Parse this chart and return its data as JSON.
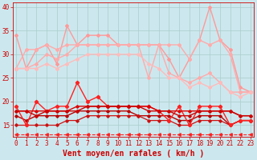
{
  "bg_color": "#cce8ee",
  "grid_color": "#aacccc",
  "xlabel": "Vent moyen/en rafales ( km/h )",
  "xlabel_color": "#cc0000",
  "xlabel_fontsize": 7,
  "tick_color": "#cc0000",
  "tick_fontsize": 5.5,
  "yticks": [
    15,
    20,
    25,
    30,
    35,
    40
  ],
  "xticks": [
    0,
    1,
    2,
    3,
    4,
    5,
    6,
    7,
    8,
    9,
    10,
    11,
    12,
    13,
    14,
    15,
    16,
    17,
    18,
    19,
    20,
    21,
    22,
    23
  ],
  "ylim": [
    12.5,
    41
  ],
  "xlim": [
    -0.3,
    23.3
  ],
  "series": [
    {
      "name": "light_upper1",
      "color": "#ff9999",
      "lw": 1.0,
      "ls": "-",
      "marker": "D",
      "ms": 2.0,
      "zorder": 2,
      "data_x": [
        0,
        1,
        2,
        3,
        4,
        5,
        6,
        7,
        8,
        9,
        10,
        11,
        12,
        13,
        14,
        15,
        16,
        17,
        18,
        19,
        20,
        21,
        22,
        23
      ],
      "data_y": [
        34,
        27,
        31,
        32,
        28,
        36,
        32,
        34,
        34,
        34,
        32,
        32,
        32,
        32,
        32,
        29,
        25,
        29,
        33,
        40,
        33,
        31,
        23,
        22
      ]
    },
    {
      "name": "light_upper2",
      "color": "#ffaaaa",
      "lw": 1.0,
      "ls": "-",
      "marker": "D",
      "ms": 2.0,
      "zorder": 2,
      "data_x": [
        0,
        1,
        2,
        3,
        4,
        5,
        6,
        7,
        8,
        9,
        10,
        11,
        12,
        13,
        14,
        15,
        16,
        17,
        18,
        19,
        20,
        21,
        22,
        23
      ],
      "data_y": [
        27,
        31,
        31,
        32,
        31,
        32,
        32,
        32,
        32,
        32,
        32,
        32,
        32,
        32,
        32,
        32,
        32,
        29,
        33,
        32,
        33,
        30,
        22,
        22
      ]
    },
    {
      "name": "light_lower1",
      "color": "#ffaaaa",
      "lw": 1.0,
      "ls": "-",
      "marker": "D",
      "ms": 2.0,
      "zorder": 2,
      "data_x": [
        0,
        1,
        2,
        3,
        4,
        5,
        6,
        7,
        8,
        9,
        10,
        11,
        12,
        13,
        14,
        15,
        16,
        17,
        18,
        19,
        20,
        21,
        22,
        23
      ],
      "data_y": [
        27,
        27,
        28,
        30,
        29,
        30,
        32,
        32,
        32,
        32,
        32,
        32,
        32,
        25,
        32,
        26,
        25,
        24,
        25,
        26,
        24,
        22,
        22,
        22
      ]
    },
    {
      "name": "light_lower2",
      "color": "#ffbbbb",
      "lw": 1.0,
      "ls": "-",
      "marker": "D",
      "ms": 2.0,
      "zorder": 2,
      "data_x": [
        0,
        1,
        2,
        3,
        4,
        5,
        6,
        7,
        8,
        9,
        10,
        11,
        12,
        13,
        14,
        15,
        16,
        17,
        18,
        19,
        20,
        21,
        22,
        23
      ],
      "data_y": [
        27,
        27,
        27,
        28,
        27,
        28,
        29,
        30,
        30,
        30,
        30,
        30,
        30,
        28,
        27,
        25,
        25,
        23,
        24,
        23,
        24,
        22,
        21,
        22
      ]
    },
    {
      "name": "dark_spiky",
      "color": "#ff2020",
      "lw": 1.0,
      "ls": "-",
      "marker": "D",
      "ms": 2.2,
      "zorder": 4,
      "data_x": [
        0,
        1,
        2,
        3,
        4,
        5,
        6,
        7,
        8,
        9,
        10,
        11,
        12,
        13,
        14,
        15,
        16,
        17,
        18,
        19,
        20,
        21,
        22,
        23
      ],
      "data_y": [
        19,
        15,
        20,
        18,
        19,
        19,
        24,
        20,
        21,
        19,
        19,
        19,
        19,
        19,
        18,
        16,
        19,
        15,
        19,
        19,
        19,
        15,
        16,
        16
      ]
    },
    {
      "name": "dark_flat1",
      "color": "#dd0000",
      "lw": 1.0,
      "ls": "-",
      "marker": "D",
      "ms": 1.8,
      "zorder": 4,
      "data_x": [
        0,
        1,
        2,
        3,
        4,
        5,
        6,
        7,
        8,
        9,
        10,
        11,
        12,
        13,
        14,
        15,
        16,
        17,
        18,
        19,
        20,
        21,
        22,
        23
      ],
      "data_y": [
        18,
        18,
        18,
        18,
        18,
        18,
        19,
        19,
        19,
        19,
        19,
        19,
        19,
        19,
        18,
        18,
        18,
        18,
        18,
        18,
        18,
        18,
        17,
        17
      ]
    },
    {
      "name": "dark_flat2",
      "color": "#cc0000",
      "lw": 1.0,
      "ls": "-",
      "marker": "D",
      "ms": 1.8,
      "zorder": 4,
      "data_x": [
        0,
        1,
        2,
        3,
        4,
        5,
        6,
        7,
        8,
        9,
        10,
        11,
        12,
        13,
        14,
        15,
        16,
        17,
        18,
        19,
        20,
        21,
        22,
        23
      ],
      "data_y": [
        18,
        18,
        17,
        18,
        18,
        18,
        18,
        19,
        19,
        19,
        19,
        19,
        19,
        18,
        18,
        18,
        17,
        17,
        18,
        18,
        18,
        18,
        17,
        17
      ]
    },
    {
      "name": "dark_lower",
      "color": "#bb0000",
      "lw": 1.0,
      "ls": "-",
      "marker": "D",
      "ms": 1.8,
      "zorder": 3,
      "data_x": [
        0,
        1,
        2,
        3,
        4,
        5,
        6,
        7,
        8,
        9,
        10,
        11,
        12,
        13,
        14,
        15,
        16,
        17,
        18,
        19,
        20,
        21,
        22,
        23
      ],
      "data_y": [
        17,
        16,
        17,
        17,
        17,
        17,
        18,
        18,
        18,
        18,
        18,
        18,
        17,
        17,
        17,
        17,
        16,
        16,
        17,
        17,
        17,
        15,
        16,
        16
      ]
    },
    {
      "name": "dark_bottom",
      "color": "#cc1111",
      "lw": 0.9,
      "ls": "-",
      "marker": "D",
      "ms": 1.8,
      "zorder": 3,
      "data_x": [
        0,
        1,
        2,
        3,
        4,
        5,
        6,
        7,
        8,
        9,
        10,
        11,
        12,
        13,
        14,
        15,
        16,
        17,
        18,
        19,
        20,
        21,
        22,
        23
      ],
      "data_y": [
        15,
        15,
        15,
        15,
        15,
        16,
        16,
        17,
        17,
        17,
        17,
        17,
        17,
        16,
        16,
        16,
        15,
        15,
        16,
        16,
        16,
        15,
        16,
        16
      ]
    },
    {
      "name": "dashed_bottom",
      "color": "#ff2020",
      "lw": 0.8,
      "ls": "--",
      "marker": "<",
      "ms": 2.5,
      "zorder": 2,
      "data_x": [
        0,
        1,
        2,
        3,
        4,
        5,
        6,
        7,
        8,
        9,
        10,
        11,
        12,
        13,
        14,
        15,
        16,
        17,
        18,
        19,
        20,
        21,
        22,
        23
      ],
      "data_y": [
        13,
        13,
        13,
        13,
        13,
        13,
        13,
        13,
        13,
        13,
        13,
        13,
        13,
        13,
        13,
        13,
        13,
        13,
        13,
        13,
        13,
        13,
        13,
        13
      ]
    }
  ]
}
